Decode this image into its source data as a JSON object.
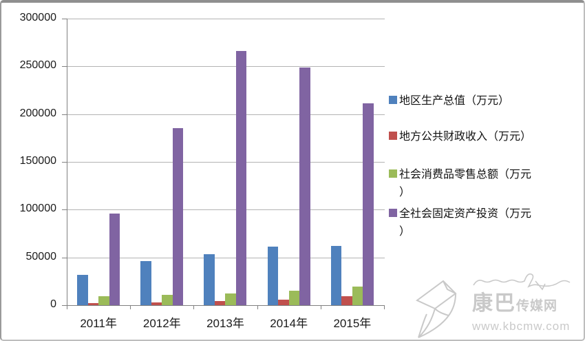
{
  "chart_data": {
    "type": "bar",
    "categories": [
      "2011年",
      "2012年",
      "2013年",
      "2014年",
      "2015年"
    ],
    "series": [
      {
        "name": "地区生产总值（万元）",
        "color": "#4F81BD",
        "values": [
          31500,
          46000,
          53500,
          61000,
          62000
        ]
      },
      {
        "name": "地方公共财政收入（万元）",
        "color": "#C0504D",
        "values": [
          2500,
          3000,
          4000,
          5500,
          9500
        ]
      },
      {
        "name": "社会消费品零售总额（万元）",
        "color": "#9BBB59",
        "values": [
          9500,
          11000,
          12500,
          15500,
          19500
        ]
      },
      {
        "name": "全社会固定资产投资（万元）",
        "color": "#8064A2",
        "values": [
          96000,
          185000,
          266000,
          248500,
          211000
        ]
      }
    ],
    "title": "",
    "xlabel": "",
    "ylabel": "",
    "ylim": [
      0,
      300000
    ],
    "y_tick_step": 50000,
    "y_tick_labels": [
      "0",
      "50000",
      "100000",
      "150000",
      "200000",
      "250000",
      "300000"
    ],
    "grid": true,
    "legend_position": "right"
  },
  "legend": {
    "items": [
      {
        "label": "地区生产总值（万元）",
        "color": "#4F81BD"
      },
      {
        "label": "地方公共财政收入（万元）",
        "color": "#C0504D"
      },
      {
        "label": "社会消费品零售总额（万元\n）",
        "color": "#9BBB59"
      },
      {
        "label": "全社会固定资产投资（万元\n）",
        "color": "#8064A2"
      }
    ]
  },
  "watermark": {
    "brand_large": "康巴",
    "brand_small": "传媒网",
    "url": "www.kbcmw.com"
  },
  "colors": {
    "gridline": "#b3b3b3",
    "axis": "#808080",
    "tick_text": "#1a1a1a",
    "watermark": "#c9c9c9"
  }
}
